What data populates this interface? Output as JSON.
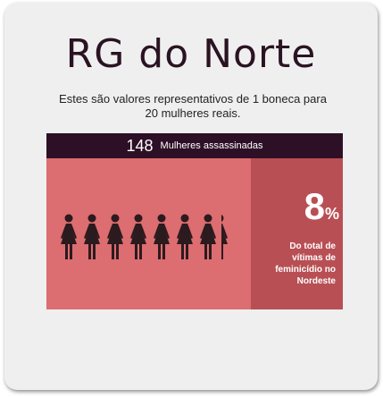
{
  "title": "RG do Norte",
  "subtitle": "Estes são valores representativos de 1 boneca para 20 mulheres reais.",
  "header": {
    "count": "148",
    "label": "Mulheres assassinadas"
  },
  "dolls": {
    "icon": "woman-icon",
    "full_count": 7,
    "partial_fraction": 0.4
  },
  "stat": {
    "value": "8",
    "unit": "%",
    "description": "Do total de vítimas de feminicídio no Nordeste"
  },
  "colors": {
    "title": "#2a1322",
    "header_bg": "#2e1026",
    "dolls_bg": "#dc6d70",
    "stat_bg": "#b84f54",
    "doll": "#2b1a1e"
  }
}
